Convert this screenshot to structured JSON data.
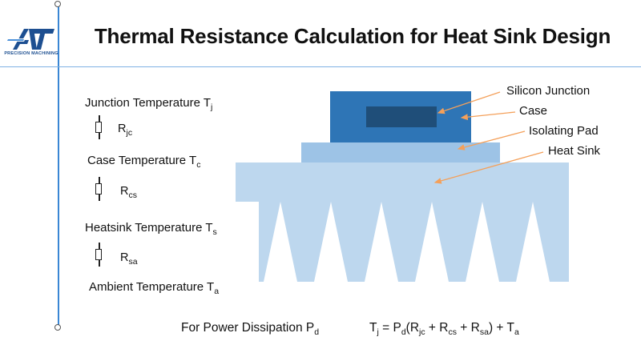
{
  "logo": {
    "mark": "AT",
    "caption": "PRECISION MACHINING"
  },
  "title": "Thermal Resistance Calculation for Heat Sink Design",
  "left_column": {
    "junction": {
      "text": "Junction Temperature T",
      "sub": "j"
    },
    "r_jc": {
      "text": "R",
      "sub": "jc"
    },
    "case": {
      "text": "Case Temperature T",
      "sub": "c"
    },
    "r_cs": {
      "text": "R",
      "sub": "cs"
    },
    "heatsink": {
      "text": "Heatsink Temperature T",
      "sub": "s"
    },
    "r_sa": {
      "text": "R",
      "sub": "sa"
    },
    "ambient": {
      "text": "Ambient Temperature  T",
      "sub": "a"
    }
  },
  "callouts": {
    "silicon_junction": "Silicon Junction",
    "case": "Case",
    "isolating_pad": "Isolating Pad",
    "heat_sink": "Heat Sink"
  },
  "formula": {
    "power_label": "For Power Dissipation P",
    "power_sub": "d",
    "t": "T",
    "t_sub": "j",
    "eq_p": " = P",
    "eq_p_sub": "d",
    "open_r1": "(R",
    "r1_sub": "jc",
    "plus_r2": " + R",
    "r2_sub": "cs",
    "plus_r3": " + R",
    "r3_sub": "sa",
    "close_plus_t": ") + T",
    "ta_sub": "a"
  },
  "colors": {
    "accent_line": "#3a86d4",
    "silicon_junction": "#1f4e79",
    "case": "#2e75b6",
    "isolating_pad": "#9dc3e6",
    "heat_sink": "#bdd7ee",
    "arrow": "#f4a05a",
    "logo": "#1d4f91"
  }
}
